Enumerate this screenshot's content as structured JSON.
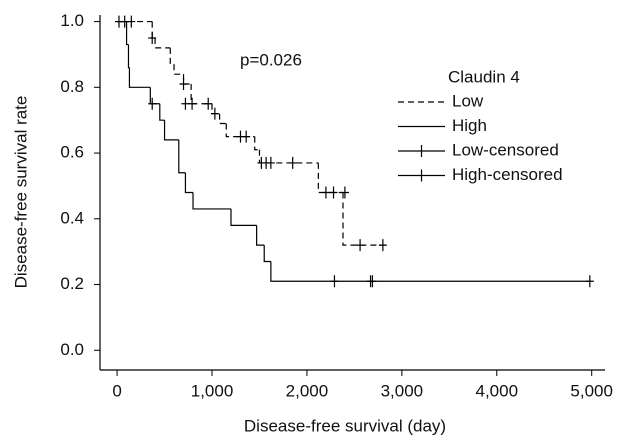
{
  "chart_data": {
    "type": "survival",
    "x_label": "Disease-free survival (day)",
    "y_label": "Disease-free survival rate",
    "annotation": "p=0.026",
    "legend_title": "Claudin 4",
    "legend": "upper right",
    "xlim": [
      -180,
      5140
    ],
    "ylim": [
      -0.06,
      1.02
    ],
    "xticks": [
      {
        "value": 0,
        "label": "0"
      },
      {
        "value": 1000,
        "label": "1,000"
      },
      {
        "value": 2000,
        "label": "2,000"
      },
      {
        "value": 3000,
        "label": "3,000"
      },
      {
        "value": 4000,
        "label": "4,000"
      },
      {
        "value": 5000,
        "label": "5,000"
      }
    ],
    "yticks": [
      {
        "value": 0,
        "label": "0.0"
      },
      {
        "value": 0.2,
        "label": "0.2"
      },
      {
        "value": 0.4,
        "label": "0.4"
      },
      {
        "value": 0.6,
        "label": "0.6"
      },
      {
        "value": 0.8,
        "label": "0.8"
      },
      {
        "value": 1,
        "label": "1.0"
      }
    ],
    "series": [
      {
        "name": "Low",
        "style": "dashed",
        "color": "#000000",
        "x": [
          0,
          370,
          400,
          560,
          600,
          700,
          780,
          1000,
          1080,
          1150,
          1450,
          1500,
          2120,
          2380,
          2820
        ],
        "values": [
          1,
          0.95,
          0.92,
          0.87,
          0.84,
          0.81,
          0.75,
          0.72,
          0.69,
          0.65,
          0.61,
          0.57,
          0.48,
          0.32,
          0.32
        ]
      },
      {
        "name": "High",
        "style": "solid",
        "color": "#000000",
        "x": [
          0,
          100,
          120,
          130,
          350,
          450,
          500,
          650,
          720,
          800,
          1200,
          1470,
          1550,
          1620,
          4980
        ],
        "values": [
          1,
          0.93,
          0.86,
          0.8,
          0.75,
          0.7,
          0.64,
          0.54,
          0.48,
          0.43,
          0.38,
          0.32,
          0.27,
          0.21,
          0.21
        ]
      },
      {
        "name": "Low-censored",
        "style": "censored",
        "color": "#000000",
        "x": [
          370,
          700,
          720,
          790,
          960,
          1030,
          1300,
          1360,
          1520,
          1570,
          1620,
          1850,
          2200,
          2280,
          2400,
          2560,
          2800
        ],
        "values": [
          0.95,
          0.81,
          0.75,
          0.75,
          0.75,
          0.72,
          0.65,
          0.65,
          0.57,
          0.57,
          0.57,
          0.57,
          0.48,
          0.48,
          0.48,
          0.32,
          0.32
        ]
      },
      {
        "name": "High-censored",
        "style": "censored",
        "color": "#000000",
        "x": [
          20,
          80,
          150,
          370,
          2290,
          2670,
          2690,
          4980
        ],
        "values": [
          1,
          1,
          1,
          0.75,
          0.21,
          0.21,
          0.21,
          0.21
        ]
      }
    ]
  }
}
